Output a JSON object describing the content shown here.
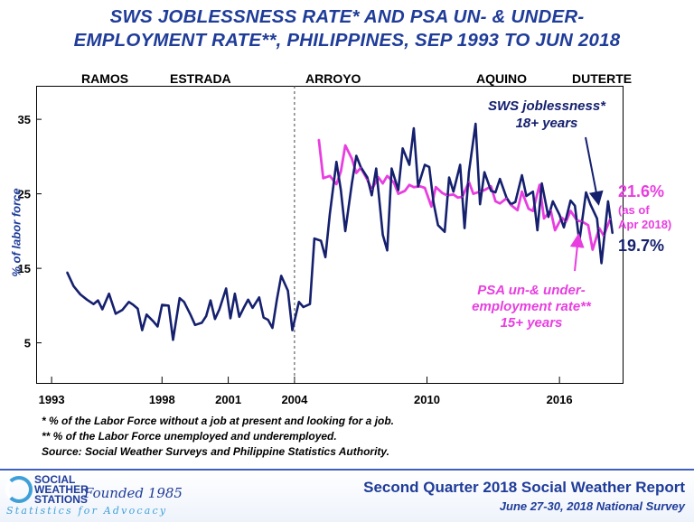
{
  "header": {
    "title_line1": "SWS JOBLESSNESS RATE* AND PSA UN- & UNDER-",
    "title_line2": "EMPLOYMENT RATE**, PHILIPPINES, SEP 1993 TO JUN 2018"
  },
  "eras": [
    {
      "label": "RAMOS"
    },
    {
      "label": "ESTRADA"
    },
    {
      "label": "ARROYO"
    },
    {
      "label": "AQUINO"
    },
    {
      "label": "DUTERTE"
    }
  ],
  "annotations": {
    "sws_label_line1": "SWS joblessness*",
    "sws_label_line2": "18+ years",
    "psa_label_line1": "PSA un-& under-",
    "psa_label_line2": "employment rate**",
    "psa_label_line3": "15+ years",
    "psa_value": "21.6%",
    "psa_asof_line1": "(as of",
    "psa_asof_line2": "Apr 2018)",
    "sws_value": "19.7%"
  },
  "footnotes": {
    "line1": "* % of the Labor Force without a job at present and looking for a job.",
    "line2": "** % of the Labor Force unemployed and underemployed.",
    "line3": "Source: Social Weather Surveys and Philippine Statistics Authority."
  },
  "footer": {
    "logo_line1": "SOCIAL",
    "logo_line2": "WEATHER",
    "logo_line3": "STATIONS",
    "founded": "Founded 1985",
    "tagline": "Statistics for Advocacy",
    "report_title": "Second Quarter 2018 Social Weather Report",
    "report_subtitle": "June 27-30, 2018 National Survey"
  },
  "colors": {
    "sws_series": "#15206e",
    "psa_series": "#e83ee0",
    "title": "#1f3c99",
    "psa_value_color": "#e83ee0",
    "sws_value_color": "#15206e"
  },
  "chart_data": {
    "type": "line",
    "xlim": [
      1992.3,
      2018.9
    ],
    "ylim": [
      -0.5,
      39.5
    ],
    "yticks": [
      5,
      15,
      25,
      35
    ],
    "xticks": [
      1993,
      1998,
      2001,
      2004,
      2010,
      2016
    ],
    "ylabel": "% of labor force",
    "era_boundary_x": 2004,
    "series": [
      {
        "name": "SWS joblessness*",
        "x": [
          1993.7,
          1994.0,
          1994.3,
          1994.6,
          1994.9,
          1995.1,
          1995.3,
          1995.6,
          1995.9,
          1996.2,
          1996.5,
          1996.7,
          1996.9,
          1997.1,
          1997.3,
          1997.6,
          1997.8,
          1998.0,
          1998.3,
          1998.5,
          1998.8,
          1999.0,
          1999.3,
          1999.5,
          1999.8,
          2000.0,
          2000.2,
          2000.4,
          2000.6,
          2000.9,
          2001.1,
          2001.3,
          2001.5,
          2001.7,
          2001.9,
          2002.1,
          2002.4,
          2002.6,
          2002.8,
          2003.0,
          2003.2,
          2003.4,
          2003.7,
          2003.9,
          2004.2,
          2004.4,
          2004.7,
          2004.9,
          2005.2,
          2005.4,
          2005.6,
          2005.9,
          2006.1,
          2006.3,
          2006.6,
          2006.8,
          2007.0,
          2007.3,
          2007.5,
          2007.7,
          2008.0,
          2008.2,
          2008.4,
          2008.7,
          2008.9,
          2009.2,
          2009.4,
          2009.6,
          2009.9,
          2010.1,
          2010.3,
          2010.5,
          2010.8,
          2011.0,
          2011.2,
          2011.5,
          2011.7,
          2011.9,
          2012.2,
          2012.4,
          2012.6,
          2012.9,
          2013.1,
          2013.3,
          2013.6,
          2013.8,
          2014.0,
          2014.3,
          2014.5,
          2014.8,
          2015.0,
          2015.2,
          2015.5,
          2015.7,
          2016.0,
          2016.2,
          2016.5,
          2016.7,
          2016.9,
          2017.2,
          2017.4,
          2017.7,
          2017.9,
          2018.2,
          2018.4
        ],
        "values": [
          14.5,
          12.6,
          11.5,
          10.8,
          10.2,
          10.7,
          9.5,
          11.6,
          8.9,
          9.4,
          10.5,
          10.1,
          9.6,
          6.7,
          8.8,
          7.9,
          7.2,
          10.1,
          10.0,
          5.4,
          11.0,
          10.5,
          8.7,
          7.4,
          7.7,
          8.6,
          10.7,
          8.2,
          9.5,
          12.3,
          8.3,
          11.6,
          8.5,
          9.7,
          10.8,
          9.7,
          11.1,
          8.4,
          8.1,
          7.0,
          10.8,
          14.0,
          12.0,
          6.7,
          10.5,
          9.8,
          10.2,
          19.0,
          18.7,
          16.5,
          22.3,
          29.3,
          25.5,
          20.0,
          26.4,
          30.1,
          28.6,
          27.2,
          24.8,
          28.4,
          19.5,
          17.4,
          28.4,
          25.5,
          31.1,
          28.9,
          33.8,
          26.0,
          28.9,
          28.6,
          23.8,
          20.8,
          19.9,
          27.2,
          25.3,
          28.9,
          20.4,
          27.9,
          34.4,
          23.6,
          27.9,
          25.4,
          25.2,
          27.0,
          24.5,
          23.6,
          23.9,
          27.5,
          24.7,
          25.3,
          20.1,
          26.4,
          21.9,
          24.0,
          22.2,
          20.5,
          24.1,
          23.4,
          18.6,
          25.2,
          23.6,
          21.7,
          15.7,
          24.0,
          19.7
        ]
      },
      {
        "name": "PSA un-& under-employment rate**",
        "x": [
          2005.1,
          2005.3,
          2005.6,
          2005.9,
          2006.1,
          2006.3,
          2006.6,
          2006.8,
          2007.0,
          2007.3,
          2007.5,
          2007.8,
          2008.0,
          2008.2,
          2008.5,
          2008.7,
          2009.0,
          2009.2,
          2009.4,
          2009.7,
          2009.9,
          2010.2,
          2010.4,
          2010.7,
          2010.9,
          2011.2,
          2011.4,
          2011.6,
          2011.9,
          2012.1,
          2012.4,
          2012.6,
          2012.9,
          2013.1,
          2013.3,
          2013.6,
          2013.8,
          2014.1,
          2014.3,
          2014.6,
          2014.8,
          2015.1,
          2015.3,
          2015.6,
          2015.8,
          2016.1,
          2016.3,
          2016.5,
          2016.8,
          2017.0,
          2017.3,
          2017.5,
          2017.8,
          2018.0,
          2018.3
        ],
        "values": [
          32.3,
          27.1,
          27.4,
          26.3,
          28.0,
          31.5,
          29.7,
          27.8,
          28.5,
          26.9,
          25.6,
          27.2,
          26.4,
          27.4,
          26.5,
          25.0,
          25.4,
          26.2,
          25.9,
          26.0,
          25.8,
          23.3,
          25.9,
          25.1,
          24.8,
          24.9,
          24.5,
          24.6,
          26.6,
          25.0,
          25.3,
          25.5,
          26.0,
          24.0,
          23.7,
          24.4,
          23.5,
          22.8,
          25.3,
          23.0,
          22.7,
          26.2,
          21.7,
          22.8,
          20.1,
          21.8,
          21.3,
          22.7,
          21.4,
          21.3,
          20.8,
          17.5,
          20.4,
          19.4,
          21.6
        ]
      }
    ]
  }
}
